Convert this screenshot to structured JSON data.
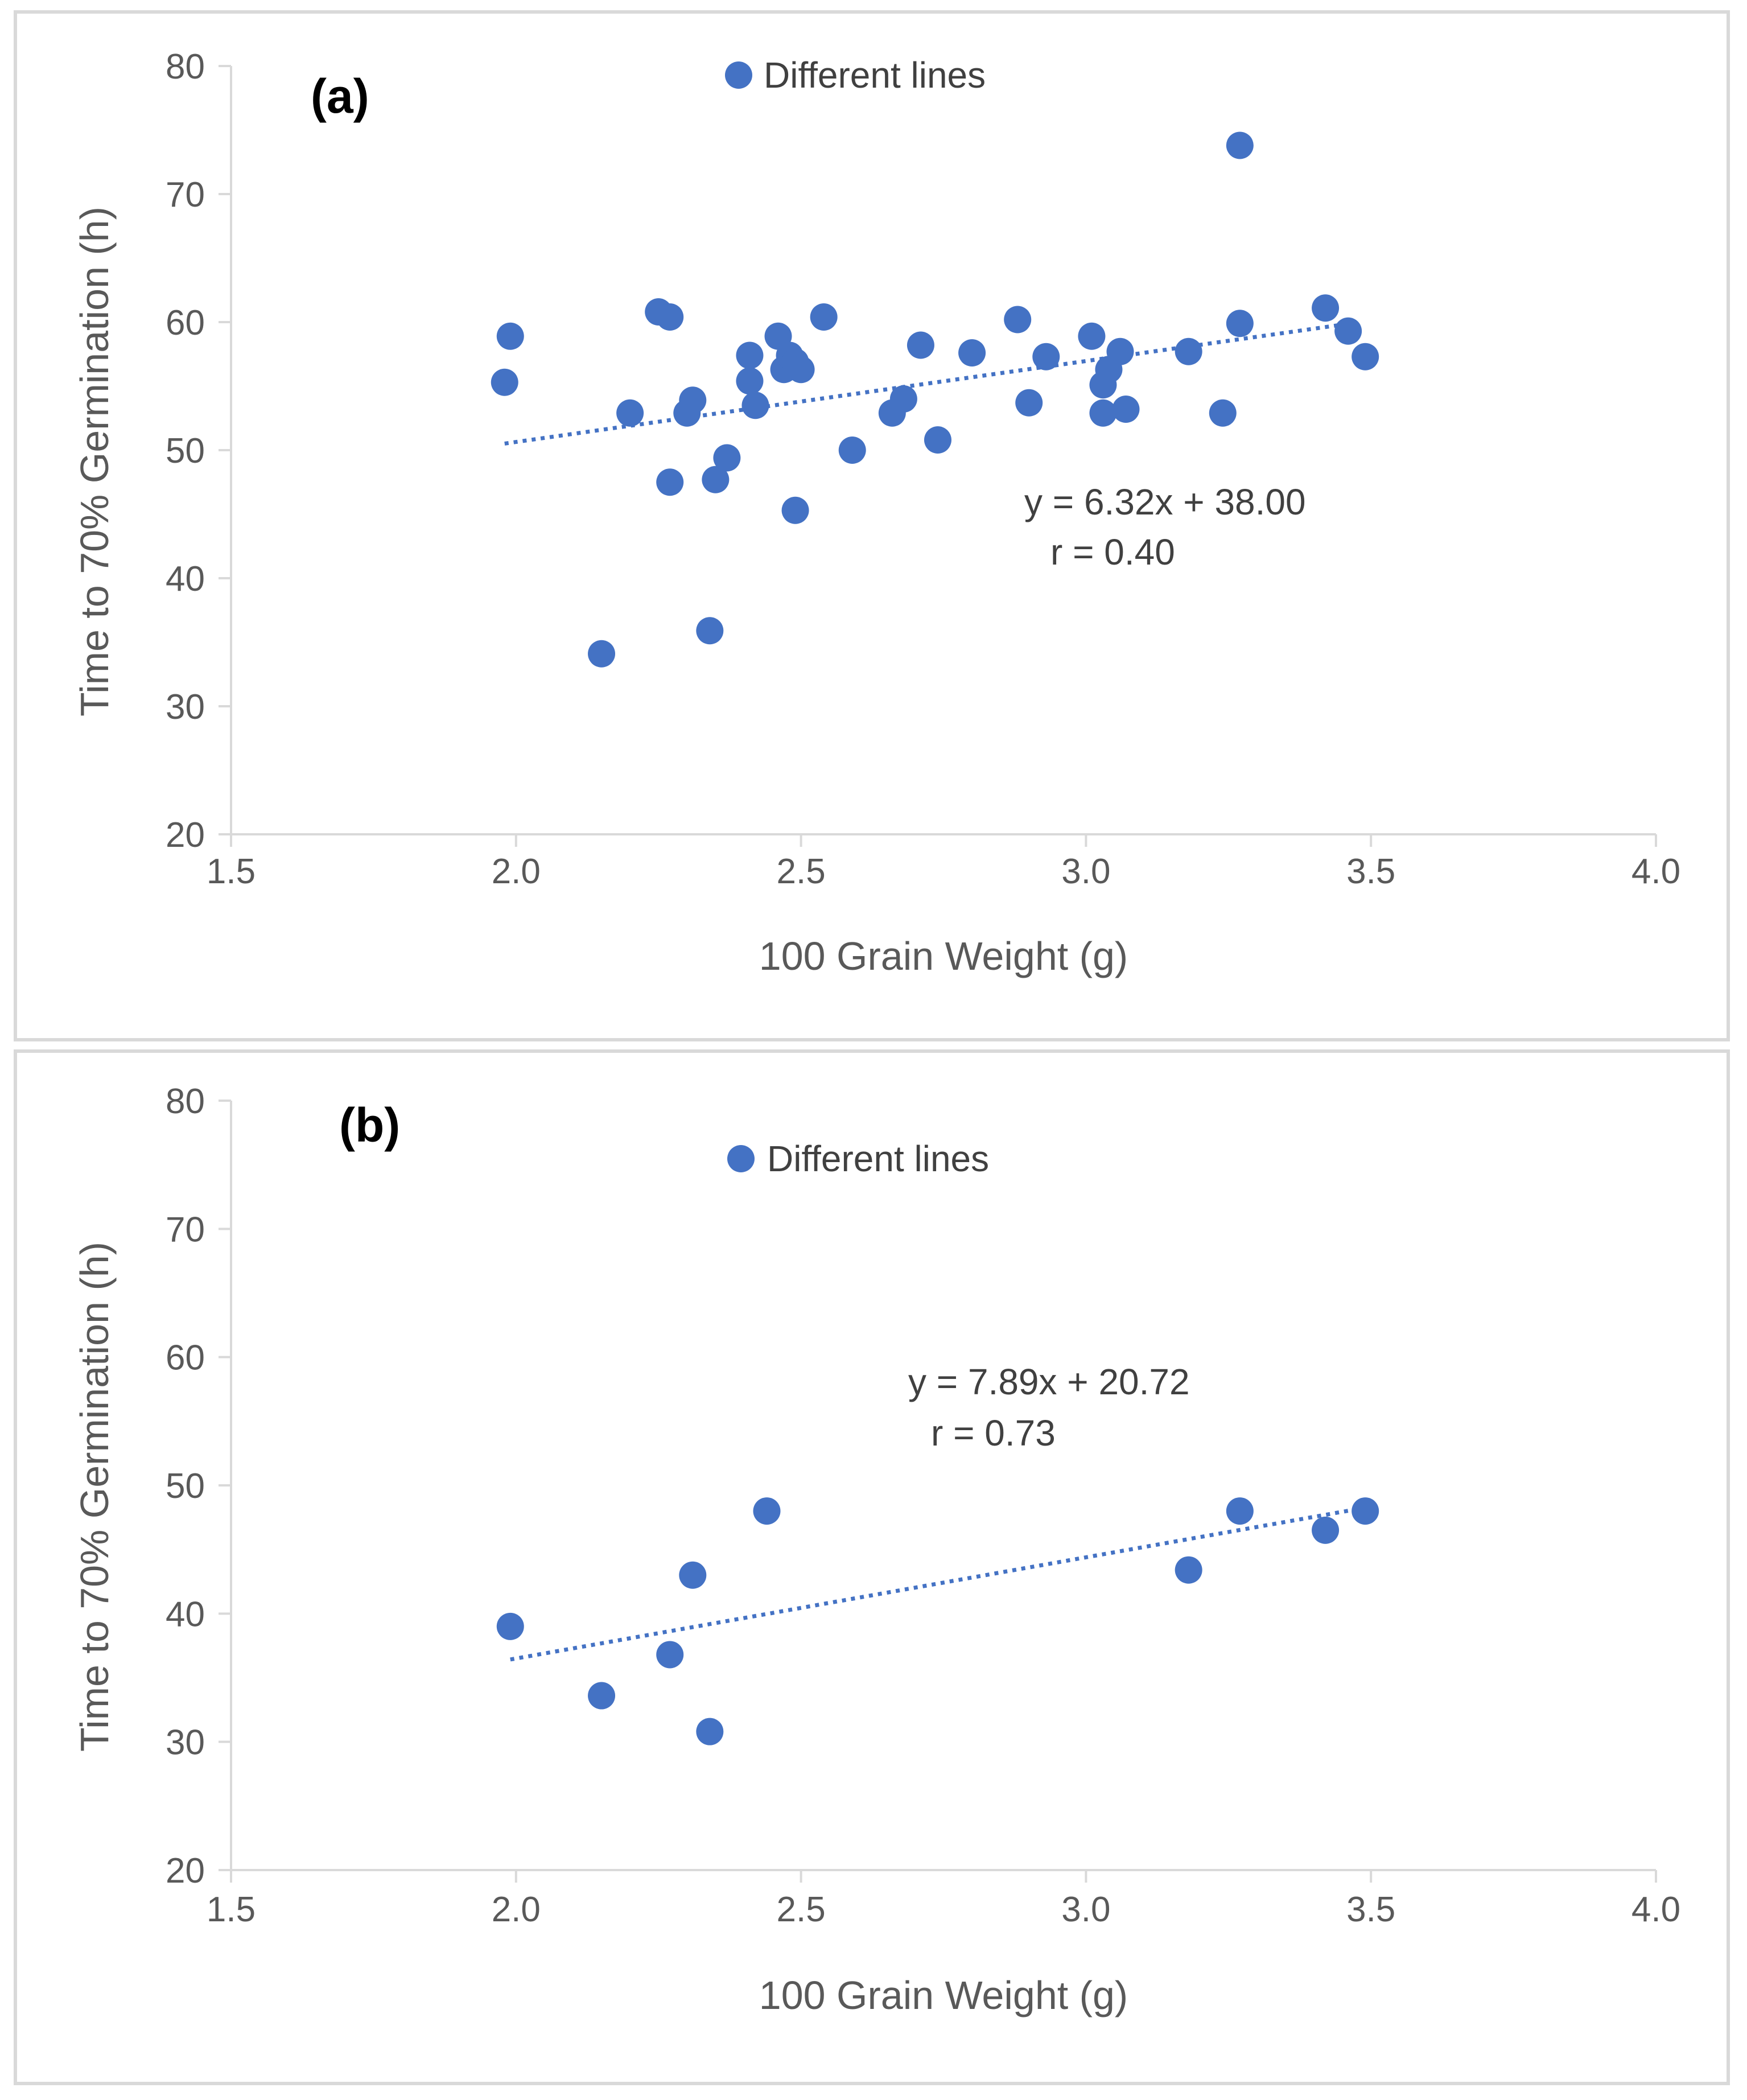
{
  "colors": {
    "marker": "#4472C4",
    "axis": "#d9d9d9",
    "text": "#595959"
  },
  "chart_data": [
    {
      "type": "scatter",
      "panel_label": "(a)",
      "xlabel": "100 Grain Weight (g)",
      "ylabel": "Time to 70% Germination (h)",
      "xlim": [
        1.5,
        4.0
      ],
      "ylim": [
        20,
        80
      ],
      "x_ticks": [
        "1.5",
        "2.0",
        "2.5",
        "3.0",
        "3.5",
        "4.0"
      ],
      "y_ticks": [
        "20",
        "30",
        "40",
        "50",
        "60",
        "70",
        "80"
      ],
      "legend": [
        "Different lines"
      ],
      "legend_position": "top-center",
      "trendline": {
        "type": "linear-dotted",
        "slope": 6.32,
        "intercept": 38.0,
        "x_range": [
          1.98,
          3.45
        ]
      },
      "equation": "y = 6.32x + 38.00",
      "r_label": "r = 0.40",
      "series": [
        {
          "name": "Different lines",
          "x": [
            1.98,
            1.99,
            2.15,
            2.2,
            2.25,
            2.27,
            2.27,
            2.3,
            2.31,
            2.34,
            2.35,
            2.37,
            2.41,
            2.41,
            2.42,
            2.46,
            2.47,
            2.48,
            2.49,
            2.5,
            2.49,
            2.54,
            2.59,
            2.66,
            2.68,
            2.71,
            2.74,
            2.8,
            2.88,
            2.9,
            2.93,
            3.01,
            3.03,
            3.03,
            3.04,
            3.06,
            3.07,
            3.18,
            3.24,
            3.27,
            3.27,
            3.42,
            3.46,
            3.49
          ],
          "y": [
            55.3,
            58.9,
            34.1,
            52.9,
            60.8,
            60.4,
            47.5,
            52.9,
            53.9,
            35.9,
            47.7,
            49.4,
            57.4,
            55.4,
            53.5,
            58.9,
            56.3,
            57.4,
            56.9,
            56.3,
            45.3,
            60.4,
            50.0,
            52.9,
            54.0,
            58.2,
            50.8,
            57.6,
            60.2,
            53.7,
            57.3,
            58.9,
            52.9,
            55.1,
            56.3,
            57.7,
            53.2,
            57.7,
            52.9,
            73.8,
            59.9,
            61.1,
            59.3,
            57.3
          ]
        }
      ]
    },
    {
      "type": "scatter",
      "panel_label": "(b)",
      "xlabel": "100 Grain Weight (g)",
      "ylabel": "Time to 70% Germination (h)",
      "xlim": [
        1.5,
        4.0
      ],
      "ylim": [
        20,
        80
      ],
      "x_ticks": [
        "1.5",
        "2.0",
        "2.5",
        "3.0",
        "3.5",
        "4.0"
      ],
      "y_ticks": [
        "20",
        "30",
        "40",
        "50",
        "60",
        "70",
        "80"
      ],
      "legend": [
        "Different lines"
      ],
      "legend_position": "top-center",
      "trendline": {
        "type": "linear-dotted",
        "slope": 7.89,
        "intercept": 20.72,
        "x_range": [
          1.99,
          3.46
        ]
      },
      "equation": "y = 7.89x + 20.72",
      "r_label": "r = 0.73",
      "series": [
        {
          "name": "Different lines",
          "x": [
            1.99,
            2.15,
            2.27,
            2.31,
            2.34,
            2.44,
            3.18,
            3.27,
            3.42,
            3.49
          ],
          "y": [
            39.0,
            33.6,
            36.8,
            43.0,
            30.8,
            48.0,
            43.4,
            48.0,
            46.5,
            48.0
          ]
        }
      ]
    }
  ]
}
